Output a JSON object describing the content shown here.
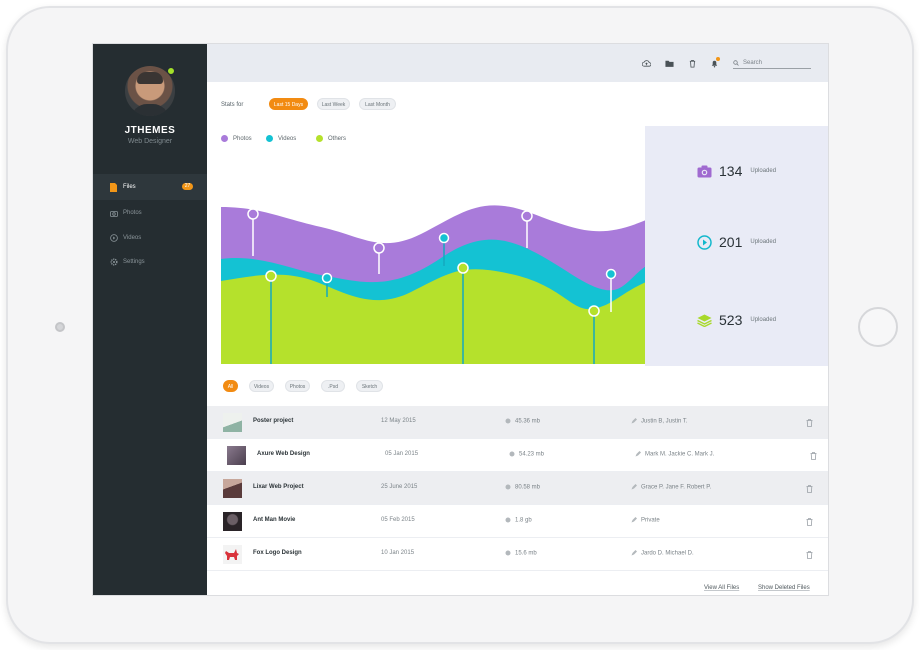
{
  "sidebar": {
    "brand": "JTHEMES",
    "role": "Web Designer",
    "items": [
      {
        "label": "Files",
        "badge": "27",
        "icon": "file-icon"
      },
      {
        "label": "Photos",
        "icon": "camera-icon"
      },
      {
        "label": "Videos",
        "icon": "play-icon"
      },
      {
        "label": "Settings",
        "icon": "gear-icon"
      }
    ]
  },
  "topbar": {
    "icons": [
      "upload-icon",
      "folder-icon",
      "trash-icon",
      "bell-icon"
    ],
    "search_placeholder": "Search"
  },
  "stats": {
    "label": "Stats for",
    "ranges": [
      "Last 15 Days",
      "Last Week",
      "Last Month"
    ],
    "active_range": "Last 15 Days"
  },
  "legend": [
    {
      "name": "Photos",
      "color": "#a97bda"
    },
    {
      "name": "Videos",
      "color": "#14c2d3"
    },
    {
      "name": "Others",
      "color": "#b5e12c"
    }
  ],
  "chart_data": {
    "type": "area",
    "title": "",
    "stacked": true,
    "series": [
      {
        "name": "Photos",
        "color": "#a97bda"
      },
      {
        "name": "Videos",
        "color": "#14c2d3"
      },
      {
        "name": "Others",
        "color": "#b5e12c"
      }
    ]
  },
  "uploads": [
    {
      "icon": "camera-icon",
      "value": "134",
      "label": "Uploaded",
      "color": "#a06ad0"
    },
    {
      "icon": "play-circle-icon",
      "value": "201",
      "label": "Uploaded",
      "color": "#13b8cc"
    },
    {
      "icon": "layers-icon",
      "value": "523",
      "label": "Uploaded",
      "color": "#a8d92a"
    }
  ],
  "filters": [
    "All",
    "Videos",
    "Photos",
    ".Psd",
    "Sketch"
  ],
  "files": [
    {
      "name": "Poster project",
      "date": "12 May 2015",
      "size": "45.36 mb",
      "owners": "Justin B, Justin T.",
      "thumb": "#dfe7e3"
    },
    {
      "name": "Axure Web Design",
      "date": "05 Jan 2015",
      "size": "54.23 mb",
      "owners": "Mark M. Jackie C. Mark J.",
      "thumb": "#6d5d6f"
    },
    {
      "name": "Lixar Web Project",
      "date": "25 June 2015",
      "size": "80.58 mb",
      "owners": "Grace P. Jane F. Robert P.",
      "thumb": "#8a6d6a"
    },
    {
      "name": "Ant Man Movie",
      "date": "05 Feb 2015",
      "size": "1.8 gb",
      "owners": "Private",
      "thumb": "#3a3338"
    },
    {
      "name": "Fox Logo Design",
      "date": "10 Jan 2015",
      "size": "15.6 mb",
      "owners": "Jardo D. Michael D.",
      "thumb": "#d9333b"
    }
  ],
  "footer": {
    "view_all": "View All Files",
    "show_deleted": "Show Deleted Files"
  }
}
